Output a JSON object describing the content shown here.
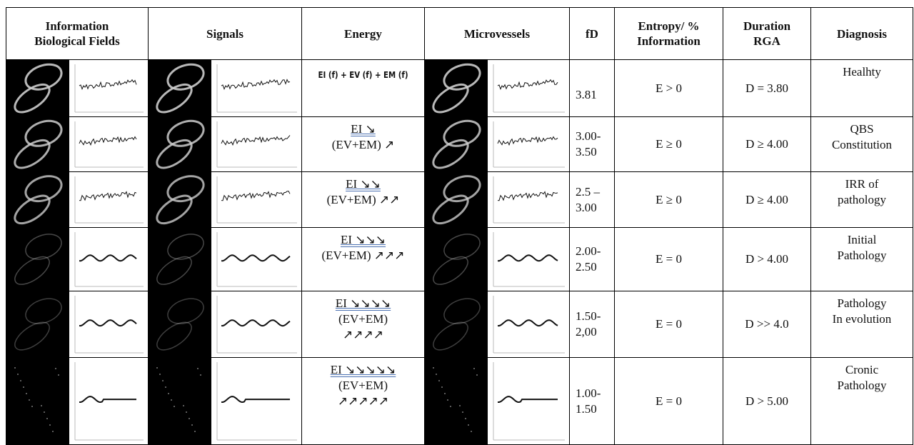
{
  "header": [
    [
      "Information",
      "Biological Fields"
    ],
    [
      "Signals"
    ],
    [
      "Energy"
    ],
    [
      "Microvessels"
    ],
    [
      "fD"
    ],
    [
      "Entropy/ %",
      "Information"
    ],
    [
      "Duration",
      "RGA"
    ],
    [
      "Diagnosis"
    ]
  ],
  "rows": [
    {
      "energy": [
        "EI (f)  + EV (f) + EM (f)"
      ],
      "fd": [
        "3.81"
      ],
      "entropy": "E > 0",
      "duration": "D = 3.80",
      "diagnosis": [
        "Healhty"
      ]
    },
    {
      "energy": [
        "EI ↘",
        "(EV+EM) ↗"
      ],
      "fd": [
        "3.00-",
        "3.50"
      ],
      "entropy": "E ≥ 0",
      "duration": "D ≥ 4.00",
      "diagnosis": [
        "QBS",
        "Constitution"
      ]
    },
    {
      "energy": [
        "EI ↘↘",
        "(EV+EM) ↗↗"
      ],
      "fd": [
        "2.5 –",
        "3.00"
      ],
      "entropy": "E ≥ 0",
      "duration": "D ≥ 4.00",
      "diagnosis": [
        "IRR of",
        "pathology"
      ]
    },
    {
      "energy": [
        "EI ↘↘↘",
        "(EV+EM) ↗↗↗"
      ],
      "fd": [
        "2.00-",
        "2.50"
      ],
      "entropy": "E = 0",
      "duration": "D > 4.00",
      "diagnosis": [
        "Initial",
        "Pathology"
      ]
    },
    {
      "energy": [
        "EI ↘↘↘↘",
        "(EV+EM)",
        "↗↗↗↗"
      ],
      "fd": [
        "1.50-",
        "2,00"
      ],
      "entropy": "E = 0",
      "duration": "D >> 4.0",
      "diagnosis": [
        "Pathology",
        "In evolution"
      ]
    },
    {
      "energy": [
        "EI ↘↘↘↘↘",
        "(EV+EM)",
        "↗↗↗↗↗"
      ],
      "fd": [
        "1.00-",
        "1.50"
      ],
      "entropy": "E = 0",
      "duration": "D > 5.00",
      "diagnosis": [
        "Cronic",
        "Pathology"
      ]
    }
  ]
}
